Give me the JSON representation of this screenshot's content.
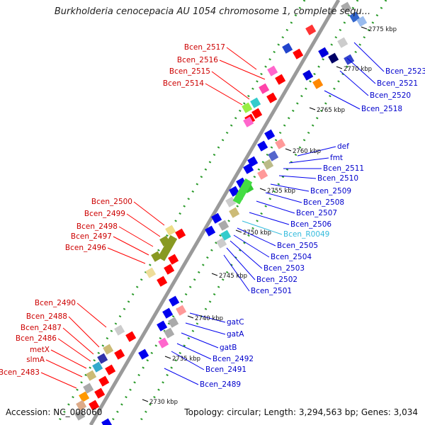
{
  "title": "Burkholderia cenocepacia AU 1054 chromosome 1, complete sequ...",
  "footer": {
    "accession": "Accession: NC_008060",
    "topology": "Topology: circular; Length: 3,294,563 bp; Genes: 3,034"
  },
  "colors": {
    "forward_gene": "#ff0000",
    "reverse_gene": "#0000ee",
    "forward_label": "#cc0000",
    "reverse_label": "#0000cc",
    "rna_label": "#33bbdd",
    "backbone": "#9a9a9a",
    "dots": "#2a9a2a"
  },
  "scale_ticks": [
    "2775 kbp",
    "2770 kbp",
    "2765 kbp",
    "2760 kbp",
    "2755 kbp",
    "2750 kbp",
    "2745 kbp",
    "2740 kbp",
    "2735 kbp",
    "2730 kbp"
  ],
  "genes_forward": [
    "Bcen_2517",
    "Bcen_2516",
    "Bcen_2515",
    "Bcen_2514",
    "Bcen_2500",
    "Bcen_2499",
    "Bcen_2498",
    "Bcen_2497",
    "Bcen_2496",
    "Bcen_2490",
    "Bcen_2488",
    "Bcen_2487",
    "Bcen_2486",
    "metX",
    "slmA",
    "Bcen_2483"
  ],
  "genes_reverse": [
    "Bcen_2523",
    "Bcen_2521",
    "Bcen_2520",
    "Bcen_2518",
    "def",
    "fmt",
    "Bcen_2511",
    "Bcen_2510",
    "Bcen_2509",
    "Bcen_2508",
    "Bcen_2507",
    "Bcen_2506",
    "Bcen_R0049",
    "Bcen_2505",
    "Bcen_2504",
    "Bcen_2503",
    "Bcen_2502",
    "Bcen_2501",
    "gatC",
    "gatA",
    "gatB",
    "Bcen_2492",
    "Bcen_2491",
    "Bcen_2489"
  ]
}
